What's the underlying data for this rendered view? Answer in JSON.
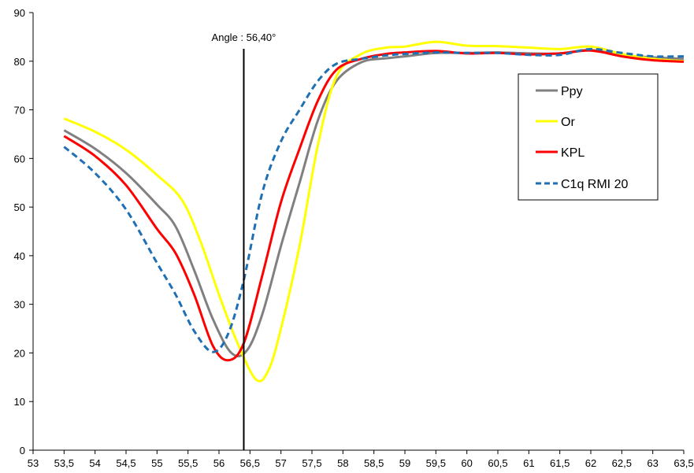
{
  "chart_data": {
    "type": "line",
    "title": "",
    "xlabel": "",
    "ylabel": "",
    "xlim": [
      53,
      63.5
    ],
    "ylim": [
      0,
      90
    ],
    "grid": false,
    "legend_position": "top-right",
    "x_ticks": [
      "53",
      "53,5",
      "54",
      "54,5",
      "55",
      "55,5",
      "56",
      "56,5",
      "57",
      "57,5",
      "58",
      "58,5",
      "59",
      "59,5",
      "60",
      "60,5",
      "61",
      "61,5",
      "62",
      "62,5",
      "63",
      "63,5"
    ],
    "y_ticks": [
      "0",
      "10",
      "20",
      "30",
      "40",
      "50",
      "60",
      "70",
      "80",
      "90"
    ],
    "annotation": {
      "label": "Angle : 56,40°",
      "x": 56.4
    },
    "series": [
      {
        "name": "Ppy",
        "color": "#808080",
        "dash": "solid",
        "points": [
          [
            53.5,
            65.8
          ],
          [
            54,
            62
          ],
          [
            54.5,
            57
          ],
          [
            55,
            50.5
          ],
          [
            55.3,
            46
          ],
          [
            55.6,
            37
          ],
          [
            55.9,
            27
          ],
          [
            56.2,
            20
          ],
          [
            56.45,
            20.5
          ],
          [
            56.7,
            28
          ],
          [
            57,
            42
          ],
          [
            57.3,
            55
          ],
          [
            57.6,
            68
          ],
          [
            57.9,
            76
          ],
          [
            58.3,
            79.8
          ],
          [
            58.7,
            80.6
          ],
          [
            59,
            81
          ],
          [
            59.5,
            81.7
          ],
          [
            60,
            81.7
          ],
          [
            60.5,
            81.8
          ],
          [
            61,
            81.6
          ],
          [
            61.5,
            81.6
          ],
          [
            62,
            82.3
          ],
          [
            62.5,
            81.2
          ],
          [
            63,
            80.8
          ],
          [
            63.5,
            80.5
          ]
        ]
      },
      {
        "name": "Or",
        "color": "#ffff00",
        "dash": "solid",
        "points": [
          [
            53.5,
            68.2
          ],
          [
            54,
            65.5
          ],
          [
            54.5,
            61.8
          ],
          [
            55,
            56.6
          ],
          [
            55.4,
            51.5
          ],
          [
            55.7,
            43
          ],
          [
            56,
            32
          ],
          [
            56.3,
            22
          ],
          [
            56.6,
            14.5
          ],
          [
            56.8,
            16.5
          ],
          [
            57,
            25
          ],
          [
            57.3,
            42
          ],
          [
            57.6,
            63
          ],
          [
            57.9,
            77
          ],
          [
            58.3,
            81.5
          ],
          [
            58.7,
            82.8
          ],
          [
            59,
            83
          ],
          [
            59.5,
            84
          ],
          [
            60,
            83.2
          ],
          [
            60.5,
            83.1
          ],
          [
            61,
            82.8
          ],
          [
            61.5,
            82.5
          ],
          [
            62,
            83
          ],
          [
            62.5,
            81.5
          ],
          [
            63,
            80.5
          ],
          [
            63.5,
            80
          ]
        ]
      },
      {
        "name": "KPL",
        "color": "#ff0000",
        "dash": "solid",
        "points": [
          [
            53.5,
            64.6
          ],
          [
            54,
            60.5
          ],
          [
            54.5,
            54.5
          ],
          [
            55,
            45.5
          ],
          [
            55.3,
            40.5
          ],
          [
            55.6,
            32
          ],
          [
            55.9,
            21.5
          ],
          [
            56.15,
            18.5
          ],
          [
            56.4,
            22
          ],
          [
            56.7,
            36
          ],
          [
            57,
            51
          ],
          [
            57.3,
            62
          ],
          [
            57.6,
            72
          ],
          [
            57.9,
            78.3
          ],
          [
            58.3,
            80.5
          ],
          [
            58.7,
            81.5
          ],
          [
            59,
            81.8
          ],
          [
            59.5,
            82.1
          ],
          [
            60,
            81.6
          ],
          [
            60.5,
            81.7
          ],
          [
            61,
            81.4
          ],
          [
            61.5,
            81.6
          ],
          [
            62,
            82.2
          ],
          [
            62.5,
            81
          ],
          [
            63,
            80.2
          ],
          [
            63.5,
            79.9
          ]
        ]
      },
      {
        "name": "C1q RMI 20",
        "color": "#1f6fb4",
        "dash": "dashed",
        "points": [
          [
            53.5,
            62.4
          ],
          [
            54,
            57
          ],
          [
            54.5,
            49.5
          ],
          [
            55,
            38.5
          ],
          [
            55.3,
            32
          ],
          [
            55.6,
            24.5
          ],
          [
            55.9,
            20.2
          ],
          [
            56.15,
            24
          ],
          [
            56.4,
            35
          ],
          [
            56.7,
            53
          ],
          [
            57,
            63.5
          ],
          [
            57.3,
            70
          ],
          [
            57.6,
            76
          ],
          [
            57.9,
            79.5
          ],
          [
            58.3,
            80.5
          ],
          [
            58.7,
            81.2
          ],
          [
            59,
            81.5
          ],
          [
            59.5,
            81.8
          ],
          [
            60,
            81.7
          ],
          [
            60.5,
            81.7
          ],
          [
            61,
            81.3
          ],
          [
            61.5,
            81.3
          ],
          [
            62,
            82.5
          ],
          [
            62.5,
            81.7
          ],
          [
            63,
            81
          ],
          [
            63.5,
            81
          ]
        ]
      }
    ]
  }
}
